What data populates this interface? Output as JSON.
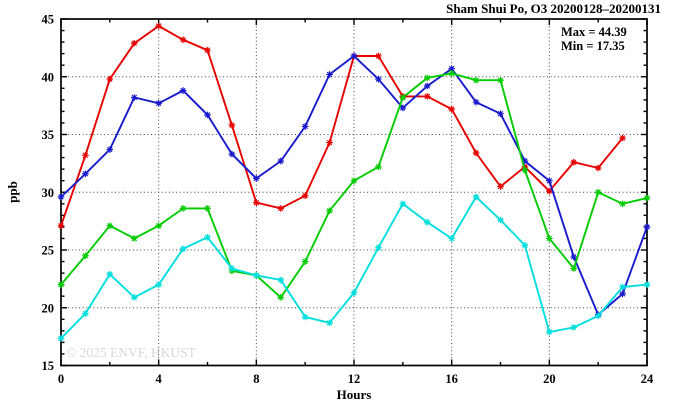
{
  "title": "Sham Shui Po, O3 20200128–20200131",
  "annotations": {
    "max_label": "Max = 44.39",
    "min_label": "Min = 17.35"
  },
  "watermark": "© 2025 ENVF, HKUST",
  "chart_data": {
    "type": "line",
    "title": "Sham Shui Po, O3 20200128–20200131",
    "xlabel": "Hours",
    "ylabel": "ppb",
    "xlim": [
      0,
      24
    ],
    "ylim": [
      15,
      45
    ],
    "x_major_ticks": [
      0,
      4,
      8,
      12,
      16,
      20,
      24
    ],
    "x_minor_step": 2,
    "y_major_ticks": [
      15,
      20,
      25,
      30,
      35,
      40,
      45
    ],
    "y_minor_step": 1,
    "grid": "dotted-at-major-ticks",
    "legend": "none",
    "marker": "asterisk",
    "x": [
      0,
      1,
      2,
      3,
      4,
      5,
      6,
      7,
      8,
      9,
      10,
      11,
      12,
      13,
      14,
      15,
      16,
      17,
      18,
      19,
      20,
      21,
      22,
      23,
      24
    ],
    "series": [
      {
        "name": "red-line",
        "color": "#e60000",
        "values": [
          27.1,
          33.2,
          39.8,
          42.9,
          44.39,
          43.2,
          42.3,
          35.8,
          29.1,
          28.6,
          29.7,
          34.3,
          41.8,
          41.8,
          38.3,
          38.3,
          37.2,
          33.4,
          30.5,
          32.2,
          30.1,
          32.6,
          32.1,
          34.7,
          null
        ]
      },
      {
        "name": "blue-line",
        "color": "#1a1acd",
        "values": [
          29.6,
          31.6,
          33.7,
          38.2,
          37.7,
          38.8,
          36.7,
          33.3,
          31.2,
          32.7,
          35.7,
          40.2,
          41.8,
          39.8,
          37.3,
          39.2,
          40.7,
          37.8,
          36.8,
          32.7,
          31.0,
          24.4,
          19.4,
          21.2,
          27.0
        ]
      },
      {
        "name": "green-line",
        "color": "#00cc00",
        "values": [
          22.0,
          24.5,
          27.1,
          26.0,
          27.1,
          28.6,
          28.6,
          23.2,
          22.8,
          20.9,
          24.0,
          28.4,
          31.0,
          32.2,
          38.2,
          39.9,
          40.3,
          39.7,
          39.7,
          31.9,
          26.0,
          23.4,
          30.0,
          29.0,
          29.5
        ]
      },
      {
        "name": "cyan-line",
        "color": "#00dede",
        "values": [
          17.35,
          19.5,
          22.9,
          20.9,
          22.0,
          25.1,
          26.1,
          23.4,
          22.8,
          22.4,
          19.2,
          18.7,
          21.3,
          25.2,
          29.0,
          27.4,
          26.0,
          29.6,
          27.6,
          25.4,
          17.9,
          18.3,
          19.3,
          21.8,
          22.0
        ]
      }
    ],
    "stats": {
      "max": 44.39,
      "min": 17.35
    }
  }
}
